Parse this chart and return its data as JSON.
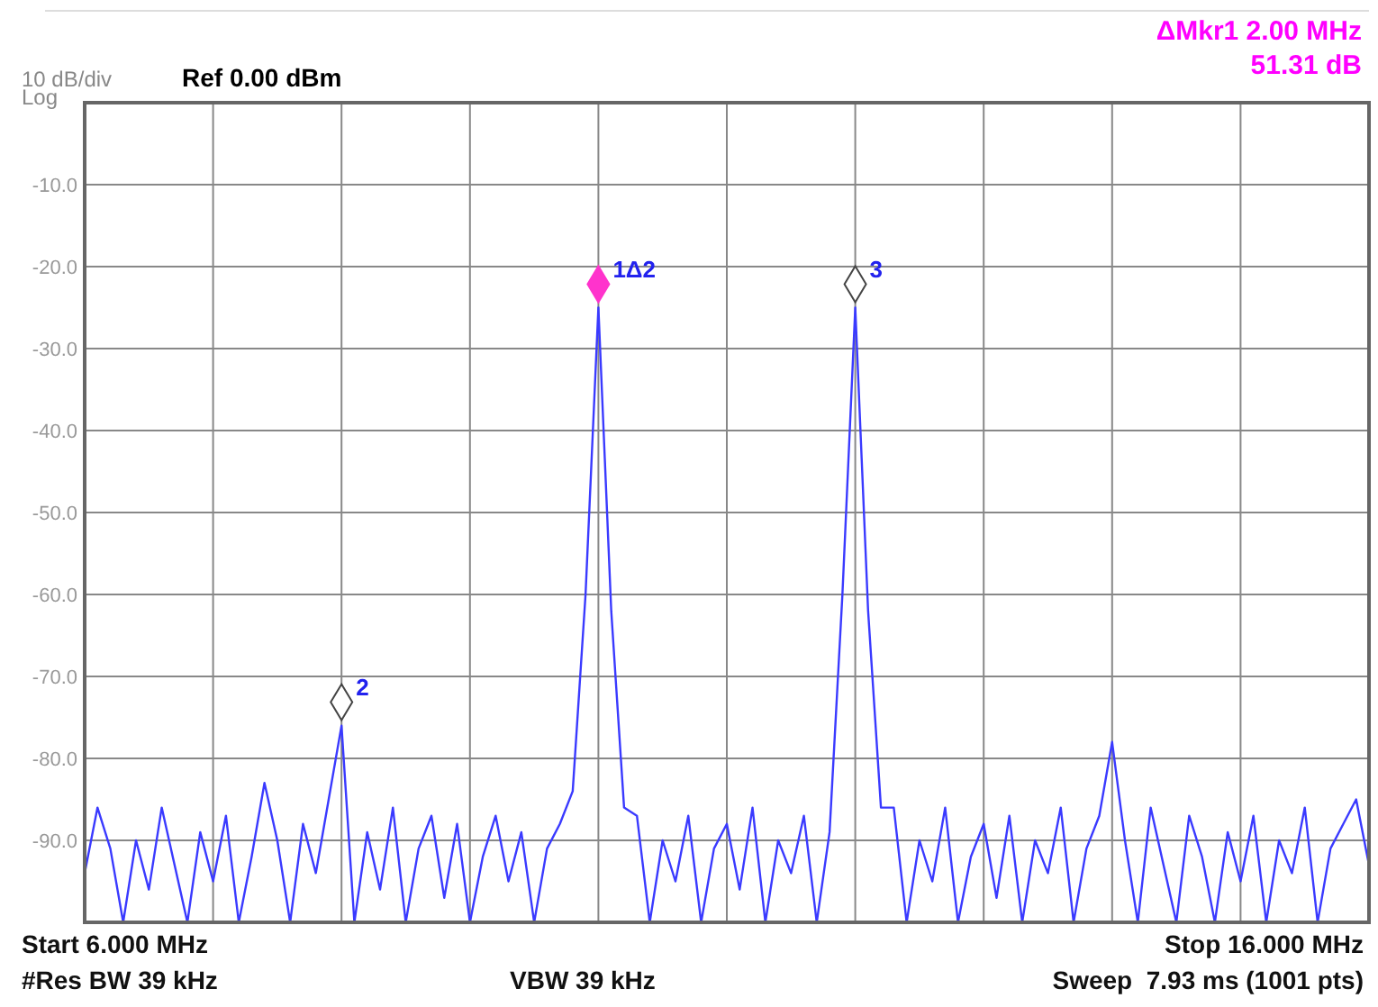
{
  "chart_data": {
    "type": "line",
    "ylim": [
      -100,
      0
    ],
    "categories": [
      null,
      null,
      null,
      null,
      null,
      null,
      null,
      null,
      null,
      null,
      null,
      null,
      null,
      null,
      null,
      null,
      null,
      null,
      null,
      null,
      null,
      null,
      null,
      null,
      null,
      null,
      null,
      null,
      null,
      null,
      null,
      null,
      null,
      null,
      null,
      null,
      null,
      null,
      null,
      null,
      null,
      null,
      null,
      null,
      null,
      null,
      null,
      null,
      null,
      null,
      null,
      null,
      null,
      null,
      null,
      null,
      null,
      null,
      null,
      null,
      null,
      null,
      null,
      null,
      null,
      null,
      null,
      null,
      null,
      null,
      null,
      null,
      null,
      null,
      null,
      null,
      null,
      null,
      null,
      null,
      null,
      null,
      null,
      null,
      null,
      null,
      null,
      null,
      null,
      null,
      null,
      null,
      null,
      null,
      null,
      null,
      null,
      null,
      null,
      null,
      null
    ],
    "yticks": [
      {
        "value": 0,
        "label": null
      },
      {
        "value": -10,
        "label": "-10.0"
      },
      {
        "value": -20,
        "label": "-20.0"
      },
      {
        "value": -30,
        "label": "-30.0"
      },
      {
        "value": -40,
        "label": "-40.0"
      },
      {
        "value": -50,
        "label": "-50.0"
      },
      {
        "value": -60,
        "label": "-60.0"
      },
      {
        "value": -70,
        "label": "-70.0"
      },
      {
        "value": -80,
        "label": "-80.0"
      },
      {
        "value": -90,
        "label": "-90.0"
      },
      {
        "value": -100,
        "label": null
      }
    ],
    "tick_labels": "y",
    "grid": true,
    "marker": "none",
    "line_style": "solid",
    "series": [
      {
        "color": "#3a3aff",
        "values": [
          -94,
          -86,
          -91,
          -100,
          -90,
          -96,
          -86,
          -93,
          -100,
          -89,
          -95,
          -87,
          -100,
          -92,
          -83,
          -90,
          -100,
          -88,
          -94,
          -85,
          -76,
          -100,
          -89,
          -96,
          -86,
          -100,
          -91,
          -87,
          -97,
          -88,
          -100,
          -92,
          -87,
          -95,
          -89,
          -100,
          -91,
          -88,
          -84,
          -60,
          -25,
          -62,
          -86,
          -87,
          -100,
          -90,
          -95,
          -87,
          -100,
          -91,
          -88,
          -96,
          -86,
          -100,
          -90,
          -94,
          -87,
          -100,
          -89,
          -60,
          -25,
          -62,
          -86,
          -86,
          -100,
          -90,
          -95,
          -86,
          -100,
          -92,
          -88,
          -97,
          -87,
          -100,
          -90,
          -94,
          -86,
          -100,
          -91,
          -87,
          -78,
          -90,
          -100,
          -86,
          -93,
          -100,
          -87,
          -92,
          -100,
          -89,
          -95,
          -87,
          -100,
          -90,
          -94,
          -86,
          -100,
          -91,
          -88,
          -85,
          -93
        ]
      }
    ],
    "annotations": [
      "10 dB/div",
      "Log",
      "Ref 0.00 dBm",
      "ΔMkr1 2.00 MHz",
      "51.31 dB",
      "Start 6.000 MHz",
      "#Res BW 39 kHz",
      "VBW 39 kHz",
      "Stop 16.000 MHz",
      "Sweep  7.93 ms (1001 pts)",
      "1Δ2",
      "2",
      "3"
    ]
  }
}
